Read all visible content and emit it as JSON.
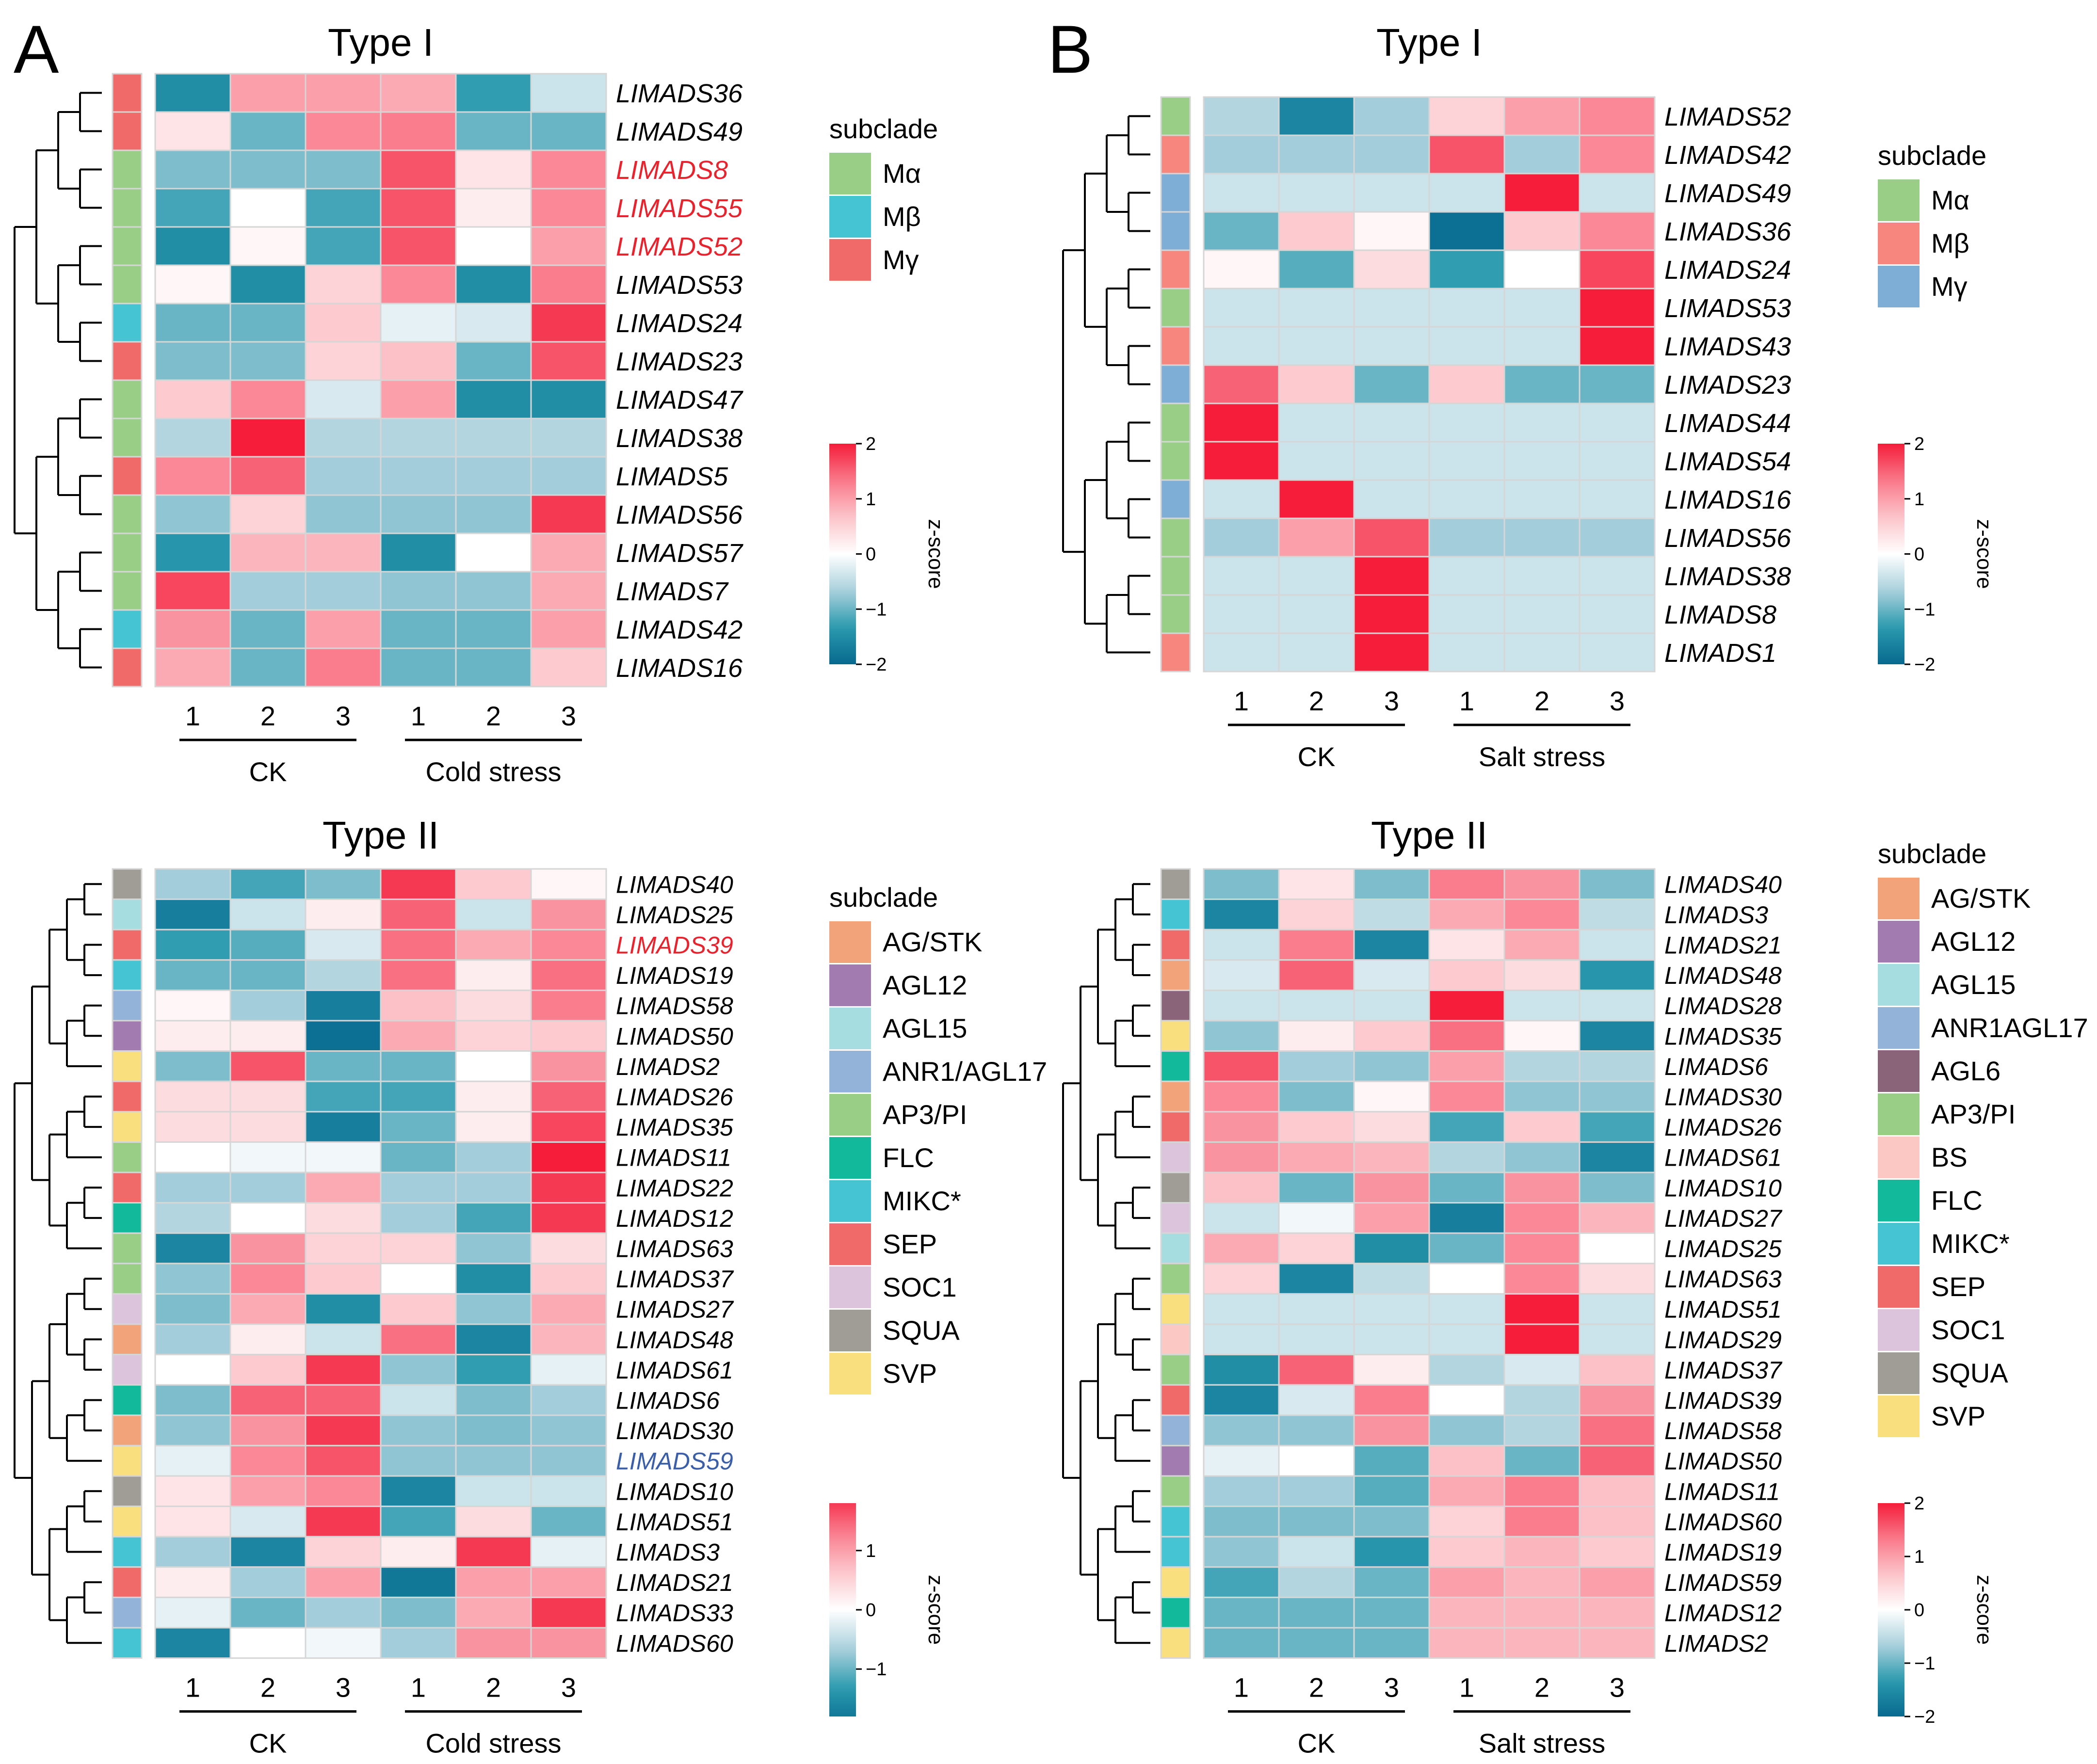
{
  "panel_labels": {
    "a": "A",
    "b": "B"
  },
  "colors": {
    "ramp": [
      "#07698f",
      "#2a9aae",
      "#a9d0dc",
      "#ffffff",
      "#fcc4ca",
      "#f9798a",
      "#f51d3a"
    ],
    "cell_border": "#d6d6d6",
    "gene_highlight_red": "#e8232d",
    "gene_highlight_blue": "#3a5fa8"
  },
  "chart_data": [
    {
      "type": "heatmap",
      "id": "A1",
      "title": "Type I",
      "columns": [
        "1",
        "2",
        "3",
        "1",
        "2",
        "3"
      ],
      "groups": [
        {
          "label": "CK",
          "cols": [
            0,
            2
          ]
        },
        {
          "label": "Cold stress",
          "cols": [
            3,
            5
          ]
        }
      ],
      "rows": [
        "LIMADS36",
        "LIMADS49",
        "LIMADS8",
        "LIMADS55",
        "LIMADS52",
        "LIMADS53",
        "LIMADS24",
        "LIMADS23",
        "LIMADS47",
        "LIMADS38",
        "LIMADS5",
        "LIMADS56",
        "LIMADS57",
        "LIMADS7",
        "LIMADS42",
        "LIMADS16"
      ],
      "highlight": {
        "LIMADS8": "red",
        "LIMADS55": "red",
        "LIMADS52": "red"
      },
      "row_subclade": [
        "My",
        "My",
        "Ma",
        "Ma",
        "Ma",
        "Ma",
        "Mb",
        "My",
        "Ma",
        "Ma",
        "My",
        "Ma",
        "Ma",
        "Ma",
        "Mb",
        "My"
      ],
      "values": [
        [
          -1.5,
          1.0,
          1.0,
          0.9,
          -1.3,
          -0.4
        ],
        [
          0.3,
          -1.0,
          1.2,
          1.3,
          -1.0,
          -1.0
        ],
        [
          -0.9,
          -0.9,
          -0.9,
          1.6,
          0.3,
          1.2
        ],
        [
          -1.2,
          0.0,
          -1.2,
          1.6,
          0.2,
          1.2
        ],
        [
          -1.5,
          0.1,
          -1.2,
          1.6,
          0.0,
          1.0
        ],
        [
          0.1,
          -1.5,
          0.5,
          1.2,
          -1.5,
          1.3
        ],
        [
          -1.0,
          -1.0,
          0.6,
          -0.2,
          -0.3,
          1.8
        ],
        [
          -0.9,
          -0.9,
          0.5,
          0.7,
          -1.0,
          1.6
        ],
        [
          0.6,
          1.2,
          -0.3,
          1.0,
          -1.5,
          -1.5
        ],
        [
          -0.6,
          2.0,
          -0.6,
          -0.6,
          -0.6,
          -0.6
        ],
        [
          1.2,
          1.5,
          -0.7,
          -0.7,
          -0.7,
          -0.7
        ],
        [
          -0.8,
          0.5,
          -0.8,
          -0.8,
          -0.8,
          1.8
        ],
        [
          -1.4,
          0.8,
          0.8,
          -1.5,
          0.0,
          0.9
        ],
        [
          1.7,
          -0.7,
          -0.7,
          -0.8,
          -0.8,
          0.9
        ],
        [
          1.1,
          -1.0,
          1.0,
          -1.0,
          -1.0,
          1.0
        ],
        [
          0.9,
          -1.0,
          1.3,
          -1.0,
          -1.0,
          0.6
        ]
      ],
      "legend": {
        "title": "subclade",
        "entries": [
          {
            "key": "Ma",
            "label": "Mα",
            "color": "#98ce86"
          },
          {
            "key": "Mb",
            "label": "Mβ",
            "color": "#45c4d3"
          },
          {
            "key": "My",
            "label": "Mγ",
            "color": "#ef6a69"
          }
        ]
      },
      "colorbar": {
        "title": "z-score",
        "ticks": [
          "2",
          "1",
          "0",
          "−1",
          "−2"
        ],
        "tick_values": [
          2,
          1,
          0,
          -1,
          -2
        ],
        "range": [
          -2,
          2
        ]
      }
    },
    {
      "type": "heatmap",
      "id": "B1",
      "title": "Type I",
      "columns": [
        "1",
        "2",
        "3",
        "1",
        "2",
        "3"
      ],
      "groups": [
        {
          "label": "CK",
          "cols": [
            0,
            2
          ]
        },
        {
          "label": "Salt stress",
          "cols": [
            3,
            5
          ]
        }
      ],
      "rows": [
        "LIMADS52",
        "LIMADS42",
        "LIMADS49",
        "LIMADS36",
        "LIMADS24",
        "LIMADS53",
        "LIMADS43",
        "LIMADS23",
        "LIMADS44",
        "LIMADS54",
        "LIMADS16",
        "LIMADS56",
        "LIMADS38",
        "LIMADS8",
        "LIMADS1"
      ],
      "highlight": {},
      "row_subclade": [
        "Ma",
        "Mb",
        "My",
        "My",
        "Mb",
        "Ma",
        "Mb",
        "My",
        "Ma",
        "Ma",
        "My",
        "Ma",
        "Ma",
        "Ma",
        "Mb"
      ],
      "values": [
        [
          -0.6,
          -1.6,
          -0.7,
          0.5,
          1.0,
          1.2
        ],
        [
          -0.7,
          -0.7,
          -0.7,
          1.6,
          -0.7,
          1.2
        ],
        [
          -0.4,
          -0.4,
          -0.4,
          -0.4,
          2.0,
          -0.4
        ],
        [
          -1.0,
          0.6,
          0.1,
          -1.9,
          0.6,
          1.2
        ],
        [
          0.1,
          -1.1,
          0.4,
          -1.3,
          0.0,
          1.7
        ],
        [
          -0.4,
          -0.4,
          -0.4,
          -0.4,
          -0.4,
          2.0
        ],
        [
          -0.4,
          -0.4,
          -0.4,
          -0.4,
          -0.4,
          2.0
        ],
        [
          1.5,
          0.6,
          -1.0,
          0.6,
          -1.0,
          -1.0
        ],
        [
          2.0,
          -0.4,
          -0.4,
          -0.4,
          -0.4,
          -0.4
        ],
        [
          2.0,
          -0.4,
          -0.4,
          -0.4,
          -0.4,
          -0.4
        ],
        [
          -0.4,
          2.0,
          -0.4,
          -0.4,
          -0.4,
          -0.4
        ],
        [
          -0.7,
          1.0,
          1.6,
          -0.7,
          -0.7,
          -0.7
        ],
        [
          -0.4,
          -0.4,
          2.0,
          -0.4,
          -0.4,
          -0.4
        ],
        [
          -0.4,
          -0.4,
          2.0,
          -0.4,
          -0.4,
          -0.4
        ],
        [
          -0.4,
          -0.4,
          2.0,
          -0.4,
          -0.4,
          -0.4
        ]
      ],
      "legend": {
        "title": "subclade",
        "entries": [
          {
            "key": "Ma",
            "label": "Mα",
            "color": "#98ce86"
          },
          {
            "key": "Mb",
            "label": "Mβ",
            "color": "#f7867f"
          },
          {
            "key": "My",
            "label": "Mγ",
            "color": "#7eaed6"
          }
        ]
      },
      "colorbar": {
        "title": "z-score",
        "ticks": [
          "2",
          "1",
          "0",
          "−1",
          "−2"
        ],
        "tick_values": [
          2,
          1,
          0,
          -1,
          -2
        ],
        "range": [
          -2,
          2
        ]
      }
    },
    {
      "type": "heatmap",
      "id": "A2",
      "title": "Type II",
      "columns": [
        "1",
        "2",
        "3",
        "1",
        "2",
        "3"
      ],
      "groups": [
        {
          "label": "CK",
          "cols": [
            0,
            2
          ]
        },
        {
          "label": "Cold stress",
          "cols": [
            3,
            5
          ]
        }
      ],
      "rows": [
        "LIMADS40",
        "LIMADS25",
        "LIMADS39",
        "LIMADS19",
        "LIMADS58",
        "LIMADS50",
        "LIMADS2",
        "LIMADS26",
        "LIMADS35",
        "LIMADS11",
        "LIMADS22",
        "LIMADS12",
        "LIMADS63",
        "LIMADS37",
        "LIMADS27",
        "LIMADS48",
        "LIMADS61",
        "LIMADS6",
        "LIMADS30",
        "LIMADS59",
        "LIMADS10",
        "LIMADS51",
        "LIMADS3",
        "LIMADS21",
        "LIMADS33",
        "LIMADS60"
      ],
      "highlight": {
        "LIMADS39": "red",
        "LIMADS59": "blue"
      },
      "row_subclade": [
        "SQUA",
        "AGL15",
        "SEP",
        "MIKC",
        "ANR1",
        "AGL12",
        "SVP",
        "SEP",
        "SVP",
        "AP3",
        "SEP",
        "FLC",
        "AP3",
        "AP3",
        "SOC1",
        "AGSTK",
        "SOC1",
        "FLC",
        "AGSTK",
        "SVP",
        "SQUA",
        "SVP",
        "MIKC",
        "SEP",
        "ANR1",
        "MIKC"
      ],
      "values": [
        [
          -0.7,
          -1.2,
          -0.9,
          1.8,
          0.6,
          0.1
        ],
        [
          -1.7,
          -0.4,
          0.2,
          1.5,
          -0.4,
          1.1
        ],
        [
          -1.3,
          -1.1,
          -0.3,
          1.4,
          0.9,
          1.2
        ],
        [
          -1.0,
          -1.0,
          -0.6,
          1.4,
          0.2,
          1.4
        ],
        [
          0.1,
          -0.7,
          -1.7,
          0.7,
          0.4,
          1.3
        ],
        [
          0.2,
          0.2,
          -1.9,
          0.9,
          0.5,
          0.6
        ],
        [
          -0.9,
          1.6,
          -1.0,
          -1.0,
          0.0,
          1.1
        ],
        [
          0.4,
          0.4,
          -1.2,
          -1.2,
          0.2,
          1.5
        ],
        [
          0.4,
          0.4,
          -1.7,
          -1.0,
          0.2,
          1.7
        ],
        [
          0.0,
          -0.1,
          -0.1,
          -1.0,
          -0.7,
          2.0
        ],
        [
          -0.7,
          -0.7,
          0.9,
          -0.7,
          -0.7,
          1.8
        ],
        [
          -0.6,
          0.0,
          0.4,
          -0.7,
          -1.2,
          1.8
        ],
        [
          -1.6,
          1.1,
          0.5,
          0.5,
          -0.8,
          0.4
        ],
        [
          -0.8,
          1.2,
          0.6,
          0.0,
          -1.5,
          0.6
        ],
        [
          -0.9,
          0.9,
          -1.5,
          0.6,
          -0.8,
          0.9
        ],
        [
          -0.7,
          0.2,
          -0.4,
          1.4,
          -1.6,
          0.8
        ],
        [
          0.0,
          0.6,
          1.8,
          -0.8,
          -1.3,
          -0.2
        ],
        [
          -0.9,
          1.5,
          1.5,
          -0.4,
          -0.9,
          -0.7
        ],
        [
          -0.8,
          1.1,
          1.8,
          -0.8,
          -0.9,
          -0.8
        ],
        [
          -0.2,
          1.2,
          1.6,
          -0.8,
          -0.8,
          -0.8
        ],
        [
          0.3,
          1.0,
          1.2,
          -1.6,
          -0.4,
          -0.4
        ],
        [
          0.3,
          -0.3,
          1.8,
          -1.2,
          0.4,
          -1.0
        ],
        [
          -0.7,
          -1.6,
          0.5,
          0.2,
          1.8,
          -0.2
        ],
        [
          0.2,
          -0.7,
          1.0,
          -1.8,
          1.0,
          1.0
        ],
        [
          -0.2,
          -1.0,
          -0.7,
          -0.9,
          0.9,
          1.8
        ],
        [
          -1.6,
          0.0,
          -0.1,
          -0.7,
          1.1,
          1.1
        ]
      ],
      "legend": {
        "title": "subclade",
        "entries": [
          {
            "key": "AGSTK",
            "label": "AG/STK",
            "color": "#f3a37a"
          },
          {
            "key": "AGL12",
            "label": "AGL12",
            "color": "#a27bb0"
          },
          {
            "key": "AGL15",
            "label": "AGL15",
            "color": "#a5dde0"
          },
          {
            "key": "ANR1",
            "label": "ANR1/AGL17",
            "color": "#93b3d8"
          },
          {
            "key": "AP3",
            "label": "AP3/PI",
            "color": "#98ce86"
          },
          {
            "key": "FLC",
            "label": "FLC",
            "color": "#13b99b"
          },
          {
            "key": "MIKC",
            "label": "MIKC*",
            "color": "#45c4d3"
          },
          {
            "key": "SEP",
            "label": "SEP",
            "color": "#ef6a69"
          },
          {
            "key": "SOC1",
            "label": "SOC1",
            "color": "#dcc4dc"
          },
          {
            "key": "SQUA",
            "label": "SQUA",
            "color": "#a09d96"
          },
          {
            "key": "SVP",
            "label": "SVP",
            "color": "#fadf7f"
          }
        ]
      },
      "colorbar": {
        "title": "z-score",
        "ticks": [
          "1",
          "0",
          "−1"
        ],
        "tick_values": [
          1,
          0,
          -1
        ],
        "range": [
          -1.8,
          1.8
        ]
      }
    },
    {
      "type": "heatmap",
      "id": "B2",
      "title": "Type II",
      "columns": [
        "1",
        "2",
        "3",
        "1",
        "2",
        "3"
      ],
      "groups": [
        {
          "label": "CK",
          "cols": [
            0,
            2
          ]
        },
        {
          "label": "Salt stress",
          "cols": [
            3,
            5
          ]
        }
      ],
      "rows": [
        "LIMADS40",
        "LIMADS3",
        "LIMADS21",
        "LIMADS48",
        "LIMADS28",
        "LIMADS35",
        "LIMADS6",
        "LIMADS30",
        "LIMADS26",
        "LIMADS61",
        "LIMADS10",
        "LIMADS27",
        "LIMADS25",
        "LIMADS63",
        "LIMADS51",
        "LIMADS29",
        "LIMADS37",
        "LIMADS39",
        "LIMADS58",
        "LIMADS50",
        "LIMADS11",
        "LIMADS60",
        "LIMADS19",
        "LIMADS59",
        "LIMADS12",
        "LIMADS2"
      ],
      "highlight": {},
      "row_subclade": [
        "SQUA",
        "MIKC",
        "SEP",
        "AGSTK",
        "AGL6",
        "SVP",
        "FLC",
        "AGSTK",
        "SEP",
        "SOC1",
        "SQUA",
        "SOC1",
        "AGL15",
        "AP3",
        "SVP",
        "BS",
        "AP3",
        "SEP",
        "ANR1",
        "AGL12",
        "AP3",
        "MIKC",
        "MIKC",
        "SVP",
        "FLC",
        "SVP"
      ],
      "values": [
        [
          -0.9,
          0.3,
          -0.9,
          1.3,
          1.1,
          -0.9
        ],
        [
          -1.6,
          0.5,
          -0.5,
          0.9,
          1.2,
          -0.5
        ],
        [
          -0.4,
          1.3,
          -1.6,
          0.3,
          0.9,
          -0.4
        ],
        [
          -0.3,
          1.5,
          -0.3,
          0.6,
          0.4,
          -1.4
        ],
        [
          -0.4,
          -0.4,
          -0.4,
          2.0,
          -0.4,
          -0.4
        ],
        [
          -0.8,
          0.2,
          0.6,
          1.4,
          0.1,
          -1.6
        ],
        [
          1.6,
          -0.7,
          -0.8,
          1.0,
          -0.6,
          -0.6
        ],
        [
          1.2,
          -0.9,
          0.1,
          1.2,
          -0.8,
          -0.8
        ],
        [
          1.1,
          0.6,
          0.4,
          -1.2,
          0.6,
          -1.2
        ],
        [
          1.1,
          0.9,
          0.8,
          -0.6,
          -0.8,
          -1.6
        ],
        [
          0.7,
          -1.0,
          1.1,
          -1.0,
          1.1,
          -0.9
        ],
        [
          -0.4,
          -0.1,
          1.0,
          -1.7,
          1.2,
          0.8
        ],
        [
          0.9,
          0.5,
          -1.5,
          -1.0,
          1.2,
          0.0
        ],
        [
          0.5,
          -1.6,
          -0.5,
          0.0,
          1.2,
          0.4
        ],
        [
          -0.4,
          -0.4,
          -0.4,
          -0.4,
          2.0,
          -0.4
        ],
        [
          -0.4,
          -0.4,
          -0.4,
          -0.4,
          2.0,
          -0.4
        ],
        [
          -1.5,
          1.5,
          0.2,
          -0.6,
          -0.3,
          0.7
        ],
        [
          -1.6,
          -0.3,
          1.3,
          0.0,
          -0.6,
          1.1
        ],
        [
          -0.8,
          -0.8,
          1.1,
          -0.8,
          -0.6,
          1.4
        ],
        [
          -0.2,
          0.0,
          -1.1,
          0.7,
          -1.0,
          1.5
        ],
        [
          -0.7,
          -0.7,
          -1.1,
          0.9,
          1.3,
          0.7
        ],
        [
          -0.9,
          -0.9,
          -0.9,
          0.5,
          1.3,
          0.7
        ],
        [
          -0.8,
          -0.4,
          -1.4,
          0.6,
          0.8,
          0.6
        ],
        [
          -1.2,
          -0.6,
          -1.0,
          1.0,
          0.8,
          1.0
        ],
        [
          -1.0,
          -1.0,
          -1.0,
          0.8,
          0.8,
          0.8
        ],
        [
          -1.0,
          -1.0,
          -1.0,
          0.8,
          0.8,
          0.8
        ]
      ],
      "legend": {
        "title": "subclade",
        "entries": [
          {
            "key": "AGSTK",
            "label": "AG/STK",
            "color": "#f3a37a"
          },
          {
            "key": "AGL12",
            "label": "AGL12",
            "color": "#a27bb0"
          },
          {
            "key": "AGL15",
            "label": "AGL15",
            "color": "#a5dde0"
          },
          {
            "key": "ANR1",
            "label": "ANR1AGL17",
            "color": "#93b3d8"
          },
          {
            "key": "AGL6",
            "label": "AGL6",
            "color": "#8a6478"
          },
          {
            "key": "AP3",
            "label": "AP3/PI",
            "color": "#98ce86"
          },
          {
            "key": "BS",
            "label": "BS",
            "color": "#fcc8c4"
          },
          {
            "key": "FLC",
            "label": "FLC",
            "color": "#13b99b"
          },
          {
            "key": "MIKC",
            "label": "MIKC*",
            "color": "#45c4d3"
          },
          {
            "key": "SEP",
            "label": "SEP",
            "color": "#ef6a69"
          },
          {
            "key": "SOC1",
            "label": "SOC1",
            "color": "#dcc4dc"
          },
          {
            "key": "SQUA",
            "label": "SQUA",
            "color": "#a09d96"
          },
          {
            "key": "SVP",
            "label": "SVP",
            "color": "#fadf7f"
          }
        ]
      },
      "colorbar": {
        "title": "z-score",
        "ticks": [
          "2",
          "1",
          "0",
          "−1",
          "−2"
        ],
        "tick_values": [
          2,
          1,
          0,
          -1,
          -2
        ],
        "range": [
          -2,
          2
        ]
      }
    }
  ]
}
